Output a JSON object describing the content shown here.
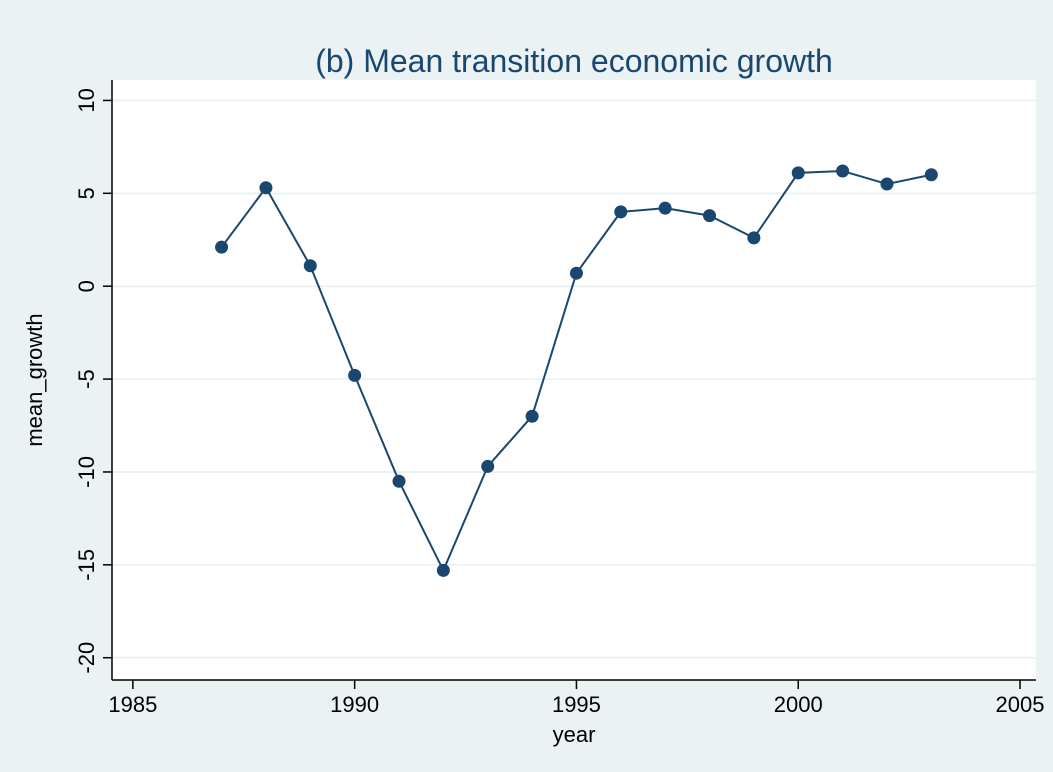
{
  "chart_data": {
    "type": "line",
    "title": "(b) Mean transition economic growth",
    "x_label": "year",
    "y_label": "mean_growth",
    "x": [
      1987,
      1988,
      1989,
      1990,
      1991,
      1992,
      1993,
      1994,
      1995,
      1996,
      1997,
      1998,
      1999,
      2000,
      2001,
      2002,
      2003
    ],
    "series": [
      {
        "name": "mean_growth",
        "color": "#1a476f",
        "values": [
          2.1,
          5.3,
          1.1,
          -4.8,
          -10.5,
          -15.3,
          -9.7,
          -7.0,
          0.7,
          4.0,
          4.2,
          3.8,
          2.6,
          6.1,
          6.2,
          5.5,
          6.0
        ]
      }
    ],
    "xlim": [
      1984.53,
      2005.36
    ],
    "ylim": [
      -21.2,
      11.1
    ],
    "xticks": [
      1985,
      1990,
      1995,
      2000,
      2005
    ],
    "yticks": [
      -20,
      -15,
      -10,
      -5,
      0,
      5,
      10
    ],
    "grid": true
  }
}
